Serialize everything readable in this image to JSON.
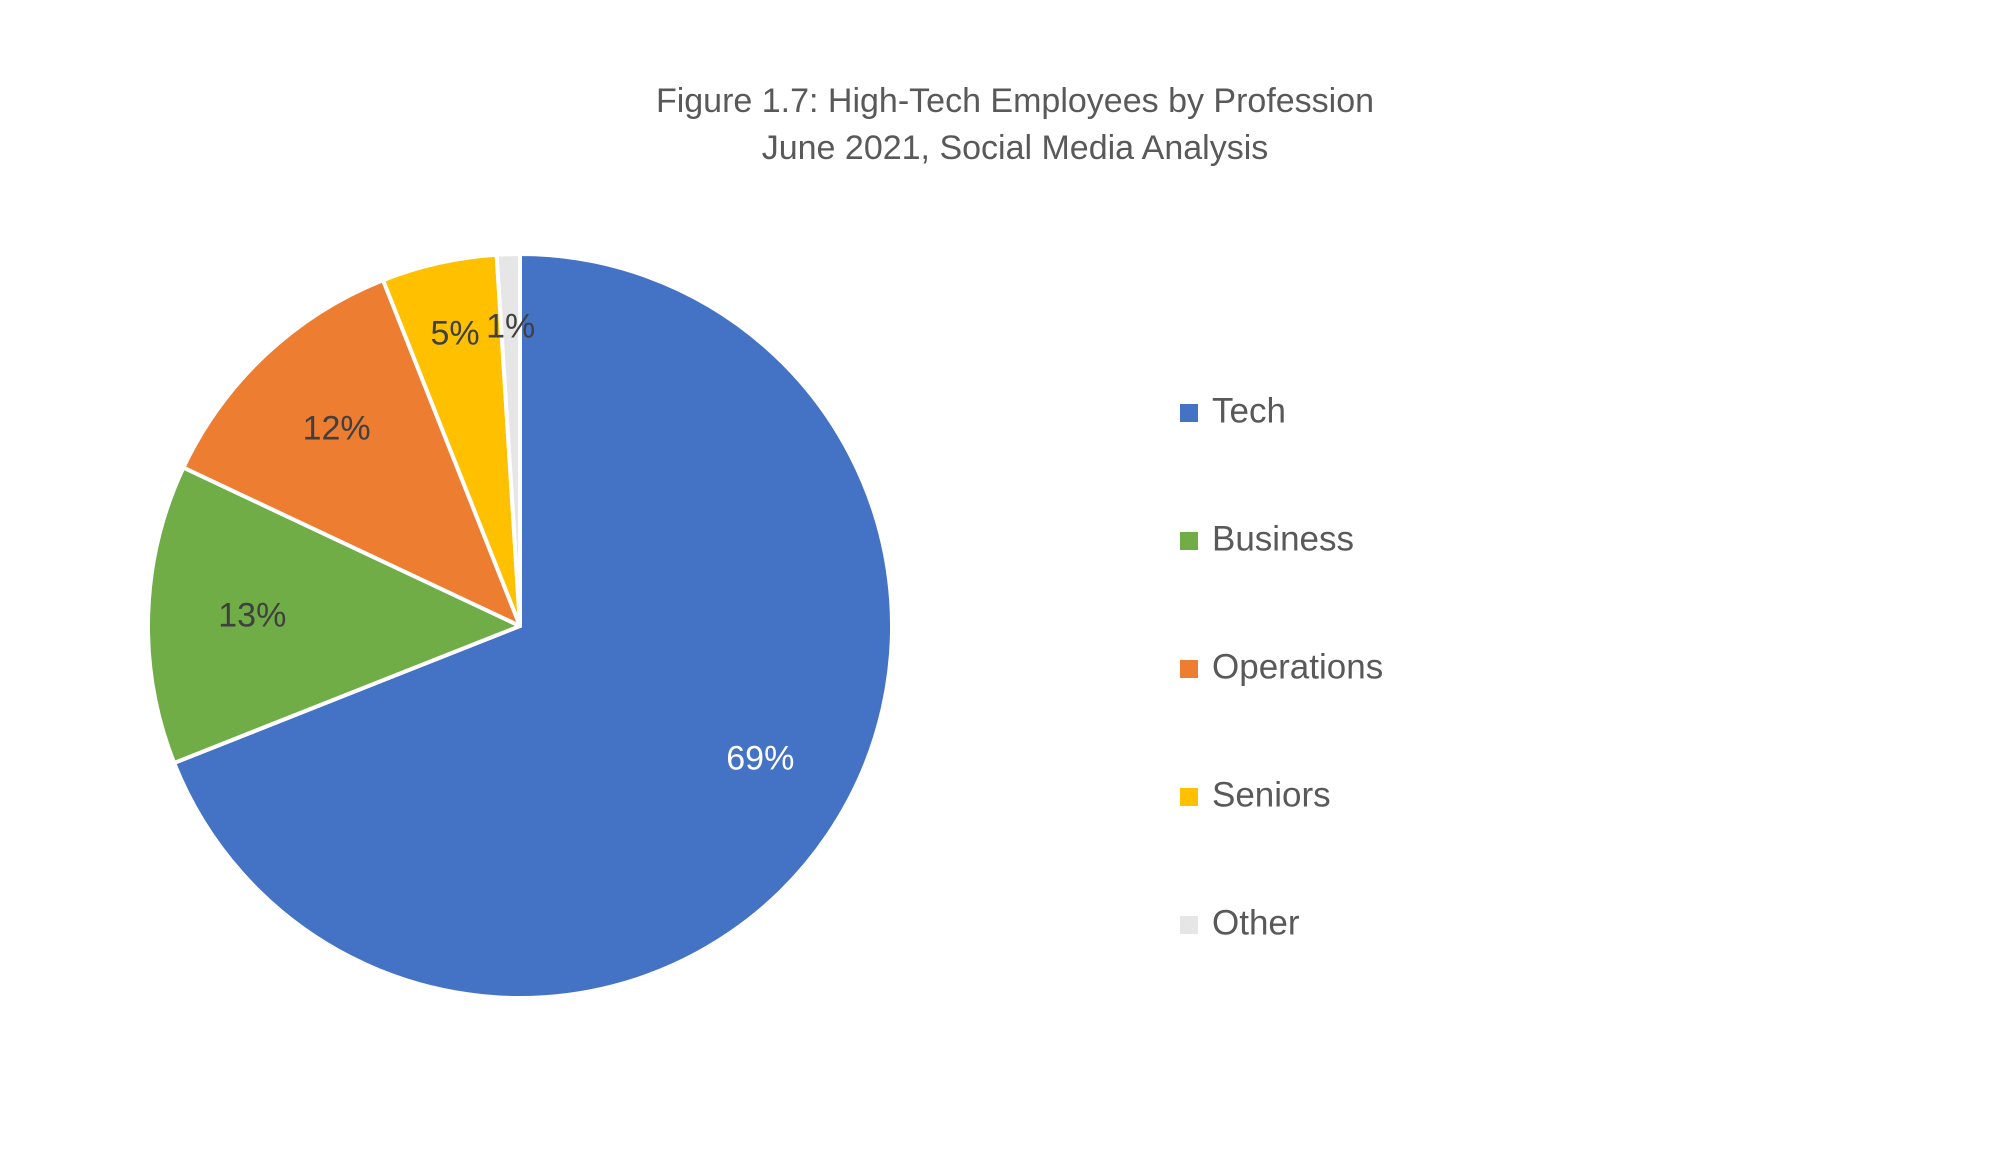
{
  "chart_data": {
    "type": "pie",
    "title": "Figure 1.7: High-Tech Employees by Profession",
    "subtitle": "June 2021, Social Media Analysis",
    "categories": [
      "Tech",
      "Business",
      "Operations",
      "Seniors",
      "Other"
    ],
    "values": [
      69,
      13,
      12,
      5,
      1
    ],
    "labels": [
      "69%",
      "13%",
      "12%",
      "5%",
      "1%"
    ],
    "colors": [
      "#4472C4",
      "#70AD47",
      "#ED7D31",
      "#FFC000",
      "#E7E6E6"
    ],
    "label_colors": [
      "#ffffff",
      "#404040",
      "#404040",
      "#404040",
      "#404040"
    ],
    "legend_position": "right",
    "start_angle": "12 o'clock",
    "direction": "clockwise"
  }
}
